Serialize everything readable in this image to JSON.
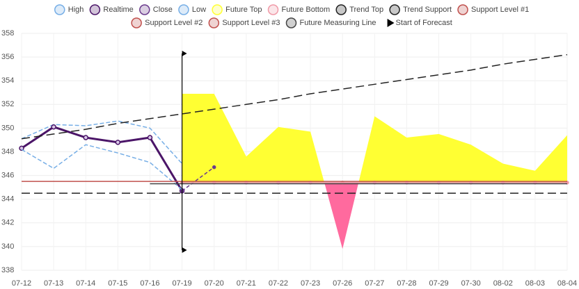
{
  "chart_data": {
    "type": "line",
    "categories": [
      "07-12",
      "07-13",
      "07-14",
      "07-15",
      "07-16",
      "07-19",
      "07-20",
      "07-21",
      "07-22",
      "07-23",
      "07-26",
      "07-27",
      "07-28",
      "07-29",
      "07-30",
      "08-02",
      "08-03",
      "08-04"
    ],
    "ylim": [
      338,
      358
    ],
    "yticks": [
      338,
      340,
      342,
      344,
      346,
      348,
      350,
      352,
      354,
      356,
      358
    ],
    "grid": true,
    "legend": "top",
    "series": [
      {
        "name": "High",
        "color": "#76aee6",
        "dash": [
          6,
          3
        ],
        "values": [
          349.1,
          350.3,
          350.2,
          350.6,
          350.0,
          347.0,
          null,
          null,
          null,
          null,
          null,
          null,
          null,
          null,
          null,
          null,
          null,
          null
        ]
      },
      {
        "name": "Realtime",
        "color": "#4b1568",
        "width": 3,
        "markers": true,
        "values": [
          348.3,
          350.1,
          349.2,
          348.8,
          349.2,
          344.7,
          null,
          null,
          null,
          null,
          null,
          null,
          null,
          null,
          null,
          null,
          null,
          null
        ]
      },
      {
        "name": "Close",
        "color": "#6a3a8c",
        "dash": [
          5,
          3
        ],
        "markers": true,
        "values": [
          null,
          null,
          null,
          null,
          null,
          344.7,
          346.7,
          null,
          null,
          null,
          null,
          null,
          null,
          null,
          null,
          null,
          null,
          null
        ]
      },
      {
        "name": "Low",
        "color": "#76aee6",
        "dash": [
          6,
          3
        ],
        "values": [
          348.2,
          346.6,
          348.6,
          347.9,
          347.1,
          344.8,
          null,
          null,
          null,
          null,
          null,
          null,
          null,
          null,
          null,
          null,
          null,
          null
        ]
      },
      {
        "name": "Future Top",
        "color": "#ffff33",
        "fill": true,
        "negative_color": "#ff6a9e",
        "values": [
          null,
          null,
          null,
          null,
          null,
          352.9,
          352.9,
          347.6,
          350.1,
          349.7,
          339.8,
          351.0,
          349.2,
          349.5,
          348.6,
          347.0,
          346.4,
          349.4
        ]
      },
      {
        "name": "Future Bottom",
        "color": "#f09aa8",
        "markers": true,
        "values": [
          null,
          null,
          null,
          null,
          null,
          345.4,
          345.4,
          345.4,
          345.4,
          345.4,
          345.4,
          345.4,
          345.4,
          345.4,
          345.4,
          345.4,
          345.4,
          345.4
        ]
      },
      {
        "name": "Trend Top",
        "color": "#222222",
        "dash": [
          12,
          6
        ],
        "values": [
          349.1,
          349.5,
          349.9,
          350.4,
          350.8,
          351.2,
          351.6,
          352.0,
          352.4,
          352.9,
          353.3,
          353.7,
          354.1,
          354.5,
          354.9,
          355.4,
          355.8,
          356.2
        ]
      },
      {
        "name": "Trend Support",
        "color": "#222222",
        "dash": [
          12,
          6
        ],
        "values": [
          344.5,
          344.5,
          344.5,
          344.5,
          344.5,
          344.5,
          344.5,
          344.5,
          344.5,
          344.5,
          344.5,
          344.5,
          344.5,
          344.5,
          344.5,
          344.5,
          344.5,
          344.5
        ]
      },
      {
        "name": "Support Level #1",
        "color": "#c0504d",
        "values": [
          345.5,
          345.5,
          345.5,
          345.5,
          345.5,
          345.5,
          345.5,
          345.5,
          345.5,
          345.5,
          345.5,
          345.5,
          345.5,
          345.5,
          345.5,
          345.5,
          345.5,
          345.5
        ]
      },
      {
        "name": "Support Level #2",
        "color": "#c0504d",
        "values": [
          null,
          null,
          null,
          null,
          null,
          null,
          null,
          null,
          null,
          null,
          null,
          null,
          null,
          null,
          null,
          null,
          null,
          null
        ]
      },
      {
        "name": "Support Level #3",
        "color": "#c0504d",
        "values": [
          null,
          null,
          null,
          null,
          null,
          null,
          null,
          null,
          null,
          null,
          null,
          null,
          null,
          null,
          null,
          null,
          null,
          null
        ]
      },
      {
        "name": "Future Measuring Line",
        "color": "#444444",
        "values": [
          null,
          null,
          null,
          null,
          345.3,
          345.3,
          345.3,
          345.3,
          345.3,
          345.3,
          345.3,
          345.3,
          345.3,
          345.3,
          345.3,
          345.3,
          345.3,
          345.3
        ]
      }
    ],
    "forecast_start": {
      "name": "Start of Forecast",
      "color": "#000000",
      "category": "07-19",
      "values": [
        356.3,
        339.7
      ]
    }
  }
}
